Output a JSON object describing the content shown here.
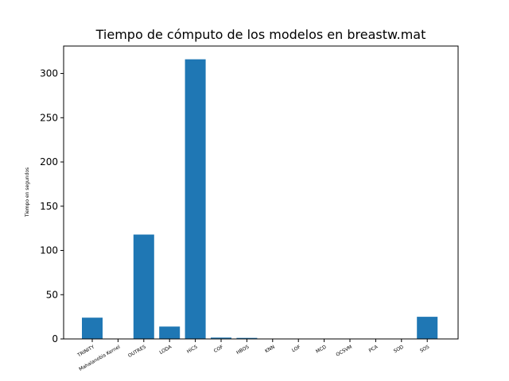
{
  "chart_data": {
    "type": "bar",
    "title": "Tiempo de cómputo de los modelos en breastw.mat",
    "xlabel": "",
    "ylabel": "Tiempo en segundos",
    "categories": [
      "TRINITY",
      "Mahalanobis Kernel",
      "OUTRES",
      "LODA",
      "HiCS",
      "COF",
      "HBOS",
      "KNN",
      "LOF",
      "MCD",
      "OCSVM",
      "PCA",
      "SOD",
      "SOS"
    ],
    "values": [
      24,
      0.1,
      118,
      14,
      316,
      1.5,
      1.2,
      0.3,
      0.3,
      0.2,
      0.2,
      0.1,
      0.3,
      25
    ],
    "ylim": [
      0,
      331
    ],
    "yticks": [
      0,
      50,
      100,
      150,
      200,
      250,
      300
    ],
    "bar_color": "#1f77b4",
    "grid": false,
    "legend": "none"
  }
}
